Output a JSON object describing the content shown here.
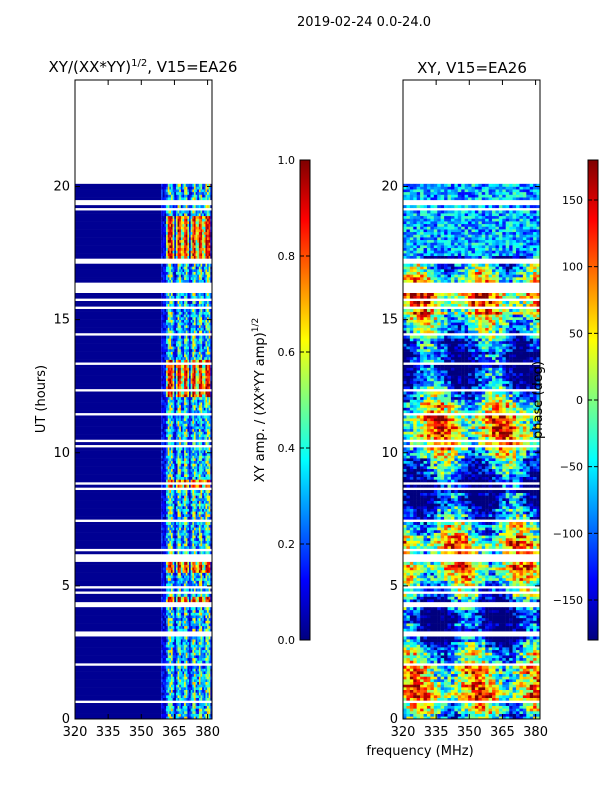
{
  "suptitle": "2019-02-24 0.0-24.0",
  "xlabel_shared": "frequency (MHz)",
  "colormap_stops": [
    "#00007f",
    "#0000ff",
    "#007fff",
    "#00ffff",
    "#7fff7f",
    "#ffff00",
    "#ff7f00",
    "#ff0000",
    "#7f0000"
  ],
  "chart_data": [
    {
      "type": "heatmap",
      "id": "amplitude",
      "title": "XY/(XX*YY)^1/2, V15=EA26",
      "title_main": "XY/(XX*YY)",
      "title_exp": "1/2",
      "title_tail": ", V15=EA26",
      "xlabel": "frequency (MHz)",
      "ylabel": "UT (hours)",
      "xlim": [
        320,
        382
      ],
      "ylim": [
        0,
        24
      ],
      "xticks": [
        320,
        335,
        350,
        365,
        380
      ],
      "yticks": [
        0,
        5,
        10,
        15,
        20
      ],
      "data_end_hour": 20.1,
      "low_channel_region": [
        320,
        359
      ],
      "active_channel_region": [
        359,
        382
      ],
      "active_channel_centers": [
        363,
        367,
        370,
        374,
        377,
        380
      ],
      "peak_bands_hours": [
        [
          17.3,
          18.9
        ],
        [
          12.1,
          13.4
        ],
        [
          8.6,
          8.9
        ],
        [
          5.5,
          6.1
        ],
        [
          4.2,
          4.5
        ]
      ],
      "colorbar": {
        "label_main": "XY amp. / (XX*YY amp)",
        "label_exp": "1/2",
        "range": [
          0.0,
          1.0
        ],
        "ticks": [
          0.0,
          0.2,
          0.4,
          0.6,
          0.8,
          1.0
        ],
        "tick_labels": [
          "0.0",
          "0.2",
          "0.4",
          "0.6",
          "0.8",
          "1.0"
        ]
      }
    },
    {
      "type": "heatmap",
      "id": "phase",
      "title": "XY, V15=EA26",
      "xlabel": "frequency (MHz)",
      "ylabel": "",
      "xlim": [
        320,
        382
      ],
      "ylim": [
        0,
        24
      ],
      "xticks": [
        320,
        335,
        350,
        365,
        380
      ],
      "yticks": [
        0,
        5,
        10,
        15,
        20
      ],
      "data_end_hour": 20.1,
      "colorbar": {
        "label": "phase (deg)",
        "range": [
          -180,
          180
        ],
        "ticks": [
          -150,
          -100,
          -50,
          0,
          50,
          100,
          150
        ],
        "tick_labels": [
          "−150",
          "−100",
          "−50",
          "0",
          "50",
          "100",
          "150"
        ]
      }
    }
  ]
}
